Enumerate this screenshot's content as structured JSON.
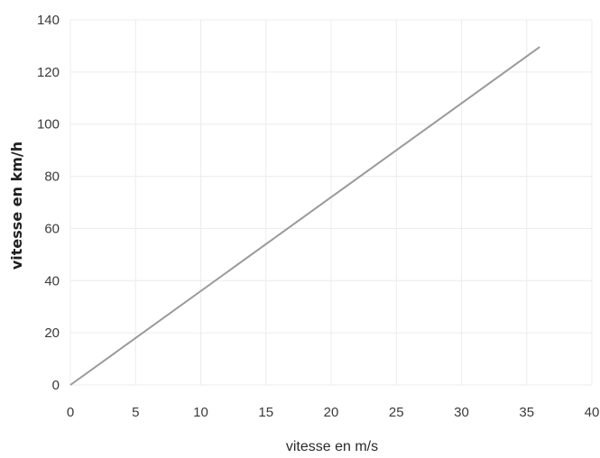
{
  "chart_data": {
    "type": "line",
    "title": "",
    "xlabel": "vitesse en m/s",
    "ylabel": "vitesse en km/h",
    "xlim": [
      0,
      40
    ],
    "ylim": [
      0,
      140
    ],
    "xticks": [
      "0",
      "5",
      "10",
      "15",
      "20",
      "25",
      "30",
      "35",
      "40"
    ],
    "yticks": [
      "0",
      "20",
      "40",
      "60",
      "80",
      "100",
      "120",
      "140"
    ],
    "grid": true,
    "legend": "none",
    "series": [
      {
        "x": [
          0,
          36
        ],
        "y": [
          0,
          129.6
        ],
        "color": "#9a9a9a"
      }
    ]
  }
}
